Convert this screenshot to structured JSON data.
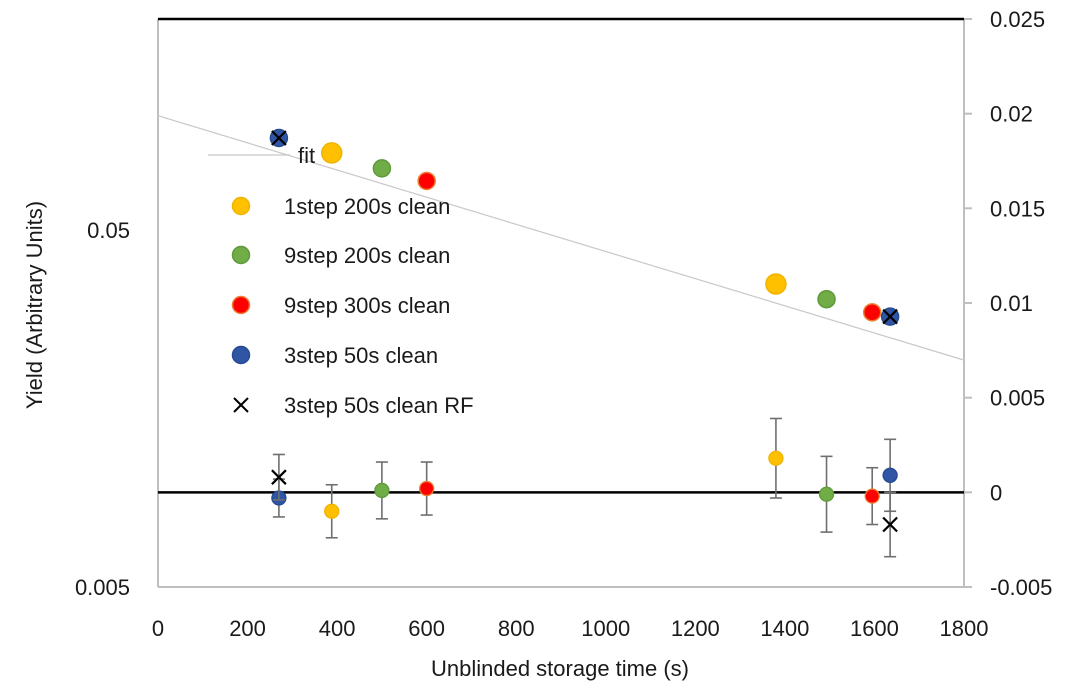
{
  "chart_data": {
    "type": "scatter",
    "xlabel": "Unblinded storage time (s)",
    "ylabel_left": "Yield (Arbitrary Units)",
    "x_ticks": [
      0,
      200,
      400,
      600,
      800,
      1000,
      1200,
      1400,
      1600,
      1800
    ],
    "xlim": [
      0,
      1800
    ],
    "left_axis": {
      "scale": "log",
      "ticks": [
        {
          "value": 0.05,
          "label": "0.05"
        },
        {
          "value": 0.005,
          "label": "0.005"
        }
      ]
    },
    "right_axis": {
      "scale": "linear",
      "ylim": [
        -0.005,
        0.025
      ],
      "ticks": [
        {
          "value": 0.025,
          "label": "0.025"
        },
        {
          "value": 0.02,
          "label": "0.02"
        },
        {
          "value": 0.015,
          "label": "0.015"
        },
        {
          "value": 0.01,
          "label": "0.01"
        },
        {
          "value": 0.005,
          "label": "0.005"
        },
        {
          "value": 0,
          "label": "0"
        },
        {
          "value": -0.005,
          "label": "-0.005"
        }
      ]
    },
    "fit": {
      "name": "fit",
      "x": [
        0,
        1800
      ],
      "y": [
        0.1045,
        0.0216
      ]
    },
    "legend": {
      "placement": "left",
      "entries": [
        {
          "label": "fit",
          "marker": "line",
          "color": "#c8c8c8"
        },
        {
          "label": "1step 200s clean",
          "marker": "circle",
          "color": "#ffc000"
        },
        {
          "label": "9step 200s clean",
          "marker": "circle",
          "color": "#70ad47"
        },
        {
          "label": "9step 300s clean",
          "marker": "circle",
          "color": "#ff0000",
          "edge": "#ed7d31"
        },
        {
          "label": "3step 50s clean",
          "marker": "circle",
          "color": "#2f55a4"
        },
        {
          "label": "3step 50s clean RF",
          "marker": "x",
          "color": "#000000"
        }
      ]
    },
    "series": [
      {
        "name": "1step 200s clean",
        "color": "#ffc000",
        "x": [
          388,
          1380
        ],
        "yield": [
          0.0822,
          0.0353
        ],
        "residual": [
          -0.001,
          0.0018
        ],
        "error": [
          0.0014,
          0.0021
        ]
      },
      {
        "name": "9step 200s clean",
        "color": "#70ad47",
        "x": [
          500,
          1493
        ],
        "yield": [
          0.0744,
          0.032
        ],
        "residual": [
          0.0001,
          -0.0001
        ],
        "error": [
          0.0015,
          0.002
        ]
      },
      {
        "name": "9step 300s clean",
        "color": "#ff0000",
        "x": [
          600,
          1595
        ],
        "yield": [
          0.0686,
          0.0294
        ],
        "residual": [
          0.0002,
          -0.0002
        ],
        "error": [
          0.0014,
          0.0015
        ]
      },
      {
        "name": "3step 50s clean",
        "color": "#2f55a4",
        "x": [
          270,
          1635
        ],
        "yield": [
          0.0905,
          0.0286
        ],
        "residual": [
          -0.0003,
          0.0009
        ],
        "error": [
          0.001,
          0.0019
        ]
      },
      {
        "name": "3step 50s clean RF",
        "color": "#000000",
        "x": [
          270,
          1635
        ],
        "yield": [
          0.0905,
          0.0286
        ],
        "residual": [
          0.0008,
          -0.0017
        ],
        "error": [
          0.0012,
          0.0017
        ]
      }
    ]
  }
}
